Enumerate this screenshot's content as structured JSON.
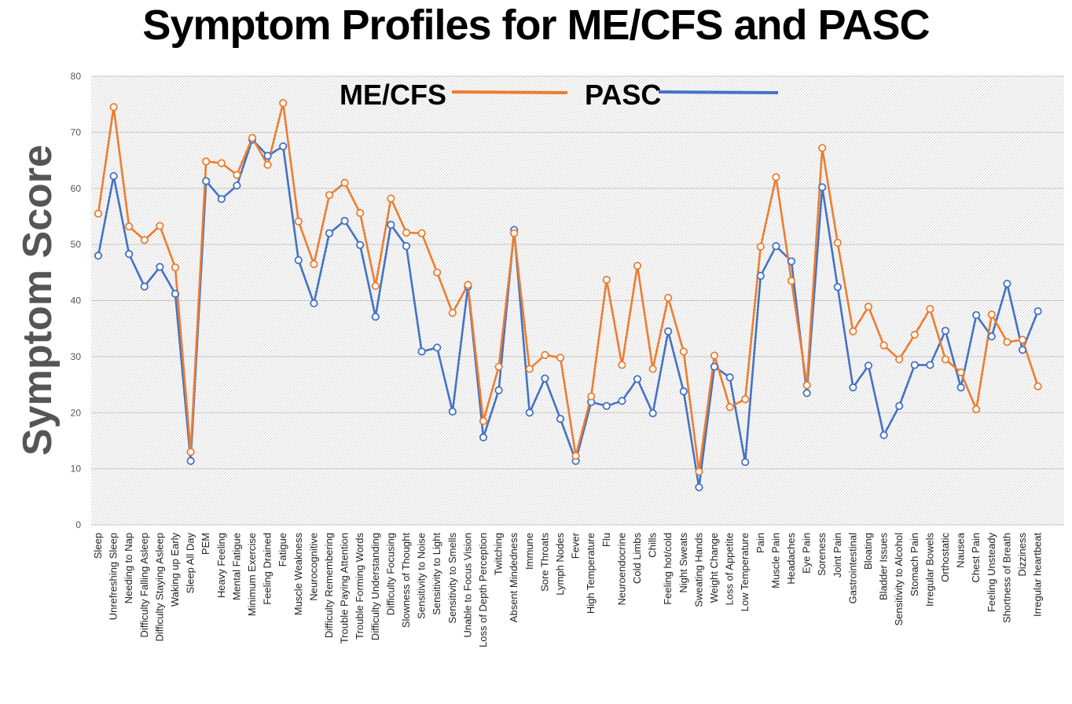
{
  "chart_data": {
    "type": "line",
    "title": "Symptom Profiles for ME/CFS and PASC",
    "ylabel": "Symptom Score",
    "xlabel": "",
    "ylim": [
      0,
      80
    ],
    "yticks": [
      0,
      10,
      20,
      30,
      40,
      50,
      60,
      70,
      80
    ],
    "grid": true,
    "legend_position": "top",
    "categories": [
      "Sleep",
      "Unrefreshing Sleep",
      "Needing to Nap",
      "Difficulty Falling Asleep",
      "Difficulty Staying Asleep",
      "Waking up Early",
      "Sleep All Day",
      "PEM",
      "Heavy Feeling",
      "Mental Fatigue",
      "Minimum Exercise",
      "Feeling Drained",
      "Fatigue",
      "Muscle Weakness",
      "Neurocognitive",
      "Difficulty Remembering",
      "Trouble Paying Attention",
      "Trouble Forming Words",
      "Difficulty Understanding",
      "Difficulty Focusing",
      "Slowness of Thought",
      "Sensitivity to Noise",
      "Sensitivity to Light",
      "Sensitivity to Smells",
      "Unable to Focus Vision",
      "Loss of Depth Perception",
      "Twitching",
      "Absent Mindedness",
      "Immune",
      "Sore Throats",
      "Lymph Nodes",
      "Fever",
      "High Temperature",
      "Flu",
      "Neuroendocrine",
      "Cold Limbs",
      "Chills",
      "Feeling hot/cold",
      "Night Sweats",
      "Sweating Hands",
      "Weight Change",
      "Loss of Appetite",
      "Low Temperature",
      "Pain",
      "Muscle Pain",
      "Headaches",
      "Eye Pain",
      "Soreness",
      "Joint Pain",
      "Gastrointestinal",
      "Bloating",
      "Bladder Issues",
      "Sensitivity to Alcohol",
      "Stomach Pain",
      "Irregular Bowels",
      "Orthostatic",
      "Nausea",
      "Chest Pain",
      "Feeling Unsteady",
      "Shortness of Breath",
      "Dizziness",
      "Irregular heartbeat"
    ],
    "series": [
      {
        "name": "ME/CFS",
        "color": "#ED7D31",
        "values": [
          55.5,
          74.5,
          53.2,
          50.8,
          53.3,
          45.9,
          13.0,
          64.8,
          64.5,
          62.4,
          69.0,
          64.2,
          75.2,
          54.1,
          46.5,
          58.8,
          61.0,
          55.6,
          42.6,
          58.2,
          52.1,
          52.0,
          45.0,
          37.8,
          42.8,
          18.5,
          28.2,
          52.0,
          27.8,
          30.3,
          29.8,
          12.3,
          22.9,
          43.7,
          28.5,
          46.2,
          27.8,
          40.5,
          30.9,
          9.5,
          30.2,
          21.0,
          22.4,
          49.6,
          62.0,
          43.5,
          24.9,
          67.2,
          50.3,
          34.5,
          38.9,
          32.0,
          29.5,
          33.9,
          38.5,
          29.5,
          27.2,
          20.6,
          37.5,
          32.6,
          33.0,
          24.7
        ]
      },
      {
        "name": "PASC",
        "color": "#4472C4",
        "values": [
          48.0,
          62.2,
          48.3,
          42.5,
          46.0,
          41.2,
          11.4,
          61.3,
          58.1,
          60.5,
          68.7,
          65.8,
          67.5,
          47.2,
          39.5,
          52.0,
          54.2,
          49.9,
          37.1,
          53.5,
          49.7,
          30.9,
          31.6,
          20.2,
          42.5,
          15.6,
          24.0,
          52.6,
          20.0,
          26.1,
          18.9,
          11.4,
          21.9,
          21.2,
          22.1,
          26.0,
          19.9,
          34.5,
          23.8,
          6.7,
          28.2,
          26.3,
          11.2,
          44.4,
          49.7,
          47.0,
          23.5,
          60.2,
          42.4,
          24.5,
          28.4,
          16.0,
          21.2,
          28.5,
          28.5,
          34.6,
          24.5,
          37.4,
          33.6,
          43.0,
          31.2,
          38.1
        ]
      }
    ]
  }
}
